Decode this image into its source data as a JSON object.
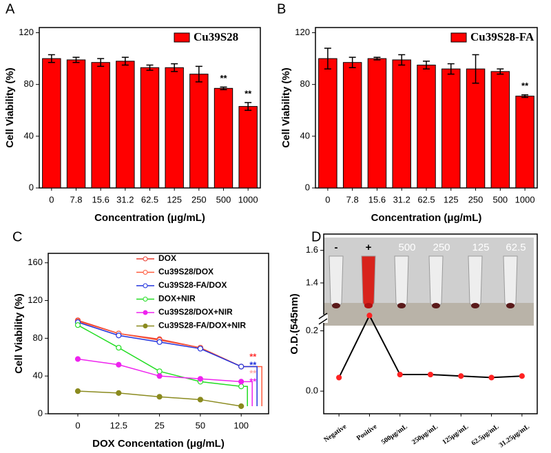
{
  "chart_data": [
    {
      "type": "bar",
      "label": "A",
      "legend": "Cu39S28",
      "legend_corner": "upper right",
      "ylabel": "Cell Viability (%)",
      "xlabel": "Concentration (μg/mL)",
      "categories": [
        "0",
        "7.8",
        "15.6",
        "31.2",
        "62.5",
        "125",
        "250",
        "500",
        "1000"
      ],
      "values": [
        100,
        99,
        97,
        98,
        93,
        93,
        88,
        77,
        63
      ],
      "errors": [
        3,
        2,
        3,
        3,
        2,
        3,
        6,
        1,
        3
      ],
      "color": "#ff0000",
      "ylim": [
        0,
        124
      ],
      "yticks": [
        0,
        40,
        80,
        120
      ],
      "annotations": [
        {
          "text": "**",
          "category": "500"
        },
        {
          "text": "**",
          "category": "1000"
        }
      ]
    },
    {
      "type": "bar",
      "label": "B",
      "legend": "Cu39S28-FA",
      "legend_corner": "upper right",
      "ylabel": "Cell Viability (%)",
      "xlabel": "Concentration (μg/mL)",
      "categories": [
        "0",
        "7.8",
        "15.6",
        "31.2",
        "62.5",
        "125",
        "250",
        "500",
        "1000"
      ],
      "values": [
        100,
        97,
        100,
        99,
        95,
        92,
        92,
        90,
        71
      ],
      "errors": [
        8,
        4,
        1,
        4,
        3,
        4,
        11,
        2,
        1
      ],
      "color": "#ff0000",
      "ylim": [
        0,
        124
      ],
      "yticks": [
        0,
        40,
        80,
        120
      ],
      "annotations": [
        {
          "text": "**",
          "category": "1000"
        }
      ]
    },
    {
      "type": "line",
      "label": "C",
      "legend_corner": "upper right",
      "ylabel": "Cell Viability (%)",
      "xlabel": "DOX Concentation (μg/mL)",
      "categories": [
        "0",
        "12.5",
        "25",
        "50",
        "100"
      ],
      "series": [
        {
          "name": "DOX",
          "color": "#e8382c",
          "marker": "open",
          "values": [
            99,
            85,
            79,
            70,
            50
          ]
        },
        {
          "name": "Cu39S28/DOX",
          "color": "#ff5a3c",
          "marker": "open",
          "values": [
            98,
            85,
            78,
            70,
            50
          ]
        },
        {
          "name": "Cu39S28-FA/DOX",
          "color": "#2233dd",
          "marker": "open",
          "values": [
            97,
            83,
            76,
            69,
            50
          ]
        },
        {
          "name": "DOX+NIR",
          "color": "#22dd22",
          "marker": "open",
          "values": [
            94,
            70,
            45,
            34,
            29
          ]
        },
        {
          "name": "Cu39S28/DOX+NIR",
          "color": "#ee22ee",
          "marker": "filled",
          "values": [
            58,
            52,
            40,
            37,
            34
          ]
        },
        {
          "name": "Cu39S28-FA/DOX+NIR",
          "color": "#8a8a1e",
          "marker": "filled",
          "values": [
            24,
            22,
            18,
            15,
            8
          ]
        }
      ],
      "ylim": [
        0,
        170
      ],
      "yticks": [
        0,
        40,
        80,
        120,
        160
      ],
      "annotations": [
        {
          "text": "**",
          "color": "#ff3333"
        },
        {
          "text": "**",
          "color": "#2233dd"
        },
        {
          "text": "**",
          "color": "#ffaaaa"
        },
        {
          "text": "**",
          "color": "#ee22ee"
        }
      ]
    },
    {
      "type": "line",
      "label": "D",
      "ylabel": "O.D.(545nm)",
      "categories": [
        "Negative",
        "Positive",
        "500μg/mL",
        "250μg/mL",
        "125μg/mL",
        "62.5μg/mL",
        "31.25μg/mL"
      ],
      "series": [
        {
          "color": "#000000",
          "marker_color": "#ff2222",
          "values": [
            0.045,
            1.2,
            0.055,
            0.055,
            0.05,
            0.045,
            0.05
          ]
        }
      ],
      "ylim": [
        -0.075,
        1.7
      ],
      "axis_break": [
        0.24,
        1.18
      ],
      "yticks": [
        {
          "value": 0,
          "label": "0.0"
        },
        0.2,
        1.4,
        1.6
      ],
      "inset_labels": [
        "-",
        "+",
        "500",
        "250",
        "125",
        "62.5"
      ]
    }
  ]
}
